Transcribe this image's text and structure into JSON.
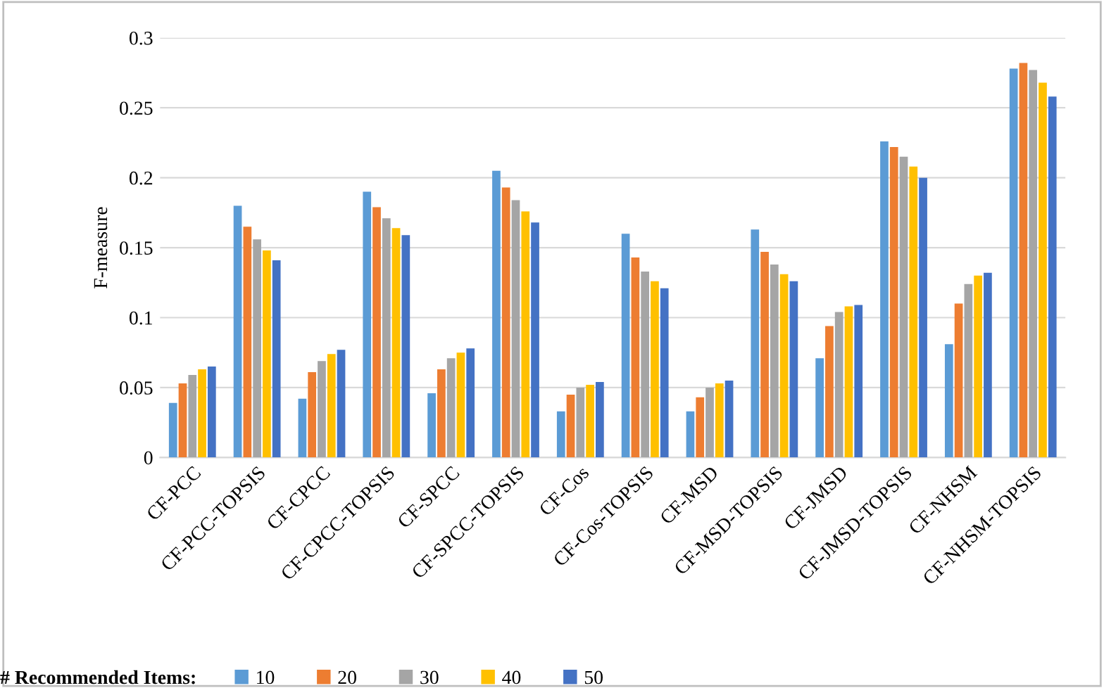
{
  "chart_data": {
    "type": "bar",
    "ylabel": "F-measure",
    "legend_title": "# Recommended Items:",
    "categories": [
      "CF-PCC",
      "CF-PCC-TOPSIS",
      "CF-CPCC",
      "CF-CPCC-TOPSIS",
      "CF-SPCC",
      "CF-SPCC-TOPSIS",
      "CF-Cos",
      "CF-Cos-TOPSIS",
      "CF-MSD",
      "CF-MSD-TOPSIS",
      "CF-JMSD",
      "CF-JMSD-TOPSIS",
      "CF-NHSM",
      "CF-NHSM-TOPSIS"
    ],
    "series": [
      {
        "name": "10",
        "color": "#5b9bd5",
        "values": [
          0.039,
          0.18,
          0.042,
          0.19,
          0.046,
          0.205,
          0.033,
          0.16,
          0.033,
          0.163,
          0.071,
          0.226,
          0.081,
          0.278
        ]
      },
      {
        "name": "20",
        "color": "#ed7d31",
        "values": [
          0.053,
          0.165,
          0.061,
          0.179,
          0.063,
          0.193,
          0.045,
          0.143,
          0.043,
          0.147,
          0.094,
          0.222,
          0.11,
          0.282
        ]
      },
      {
        "name": "30",
        "color": "#a5a5a5",
        "values": [
          0.059,
          0.156,
          0.069,
          0.171,
          0.071,
          0.184,
          0.05,
          0.133,
          0.05,
          0.138,
          0.104,
          0.215,
          0.124,
          0.277
        ]
      },
      {
        "name": "40",
        "color": "#ffc000",
        "values": [
          0.063,
          0.148,
          0.074,
          0.164,
          0.075,
          0.176,
          0.052,
          0.126,
          0.053,
          0.131,
          0.108,
          0.208,
          0.13,
          0.268
        ]
      },
      {
        "name": "50",
        "color": "#4472c4",
        "values": [
          0.065,
          0.141,
          0.077,
          0.159,
          0.078,
          0.168,
          0.054,
          0.121,
          0.055,
          0.126,
          0.109,
          0.2,
          0.132,
          0.258
        ]
      }
    ],
    "ylim": [
      0,
      0.3
    ],
    "yticks": [
      {
        "value": 0,
        "label": "0"
      },
      0.05,
      0.1,
      0.15,
      0.2,
      0.25,
      0.3
    ],
    "grid": "y",
    "legend": "bottom"
  }
}
